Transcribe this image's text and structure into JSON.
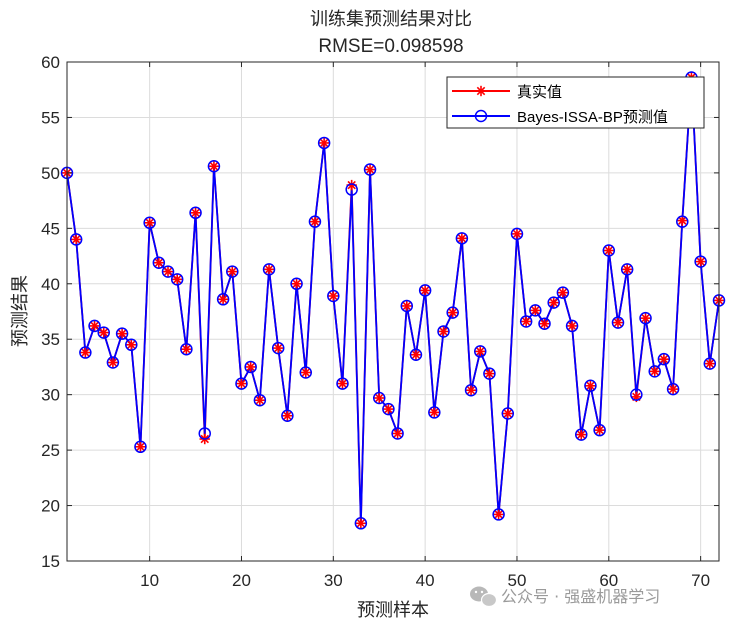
{
  "chart_data": {
    "type": "line",
    "title": "训练集预测结果对比",
    "subtitle": "RMSE=0.098598",
    "xlabel": "预测样本",
    "ylabel": "预测结果",
    "xlim": [
      1,
      72
    ],
    "ylim": [
      15,
      60
    ],
    "xticks": [
      10,
      20,
      30,
      40,
      50,
      60,
      70
    ],
    "yticks": [
      15,
      20,
      25,
      30,
      35,
      40,
      45,
      50,
      55,
      60
    ],
    "grid": true,
    "legend_position": "top-right",
    "series": [
      {
        "name": "真实值",
        "color": "#ff0000",
        "marker": "asterisk",
        "values": [
          50.0,
          44.0,
          33.8,
          36.2,
          35.6,
          32.9,
          35.5,
          34.5,
          25.3,
          45.5,
          41.9,
          41.1,
          40.4,
          34.1,
          46.4,
          26.0,
          50.6,
          38.6,
          41.1,
          31.0,
          32.5,
          29.5,
          41.3,
          34.2,
          28.1,
          40.0,
          32.0,
          45.6,
          52.7,
          38.9,
          31.0,
          48.9,
          18.4,
          50.3,
          29.7,
          28.7,
          26.5,
          38.0,
          33.6,
          39.4,
          28.4,
          35.7,
          37.4,
          44.1,
          30.4,
          33.9,
          31.9,
          19.2,
          28.3,
          44.5,
          36.6,
          37.6,
          36.4,
          38.3,
          39.2,
          36.2,
          26.4,
          30.8,
          26.8,
          43.0,
          36.5,
          41.3,
          29.8,
          36.9,
          32.1,
          33.2,
          30.5,
          45.7,
          58.6,
          42.0,
          32.8,
          38.5
        ]
      },
      {
        "name": "Bayes-ISSA-BP预测值",
        "color": "#0000ff",
        "marker": "circle",
        "values": [
          50.0,
          44.0,
          33.8,
          36.2,
          35.6,
          32.9,
          35.5,
          34.5,
          25.3,
          45.5,
          41.9,
          41.1,
          40.4,
          34.1,
          46.4,
          26.5,
          50.6,
          38.6,
          41.1,
          31.0,
          32.5,
          29.5,
          41.3,
          34.2,
          28.1,
          40.0,
          32.0,
          45.6,
          52.7,
          38.9,
          31.0,
          48.5,
          18.4,
          50.3,
          29.7,
          28.7,
          26.5,
          38.0,
          33.6,
          39.4,
          28.4,
          35.7,
          37.4,
          44.1,
          30.4,
          33.9,
          31.9,
          19.2,
          28.3,
          44.5,
          36.6,
          37.6,
          36.4,
          38.3,
          39.2,
          36.2,
          26.4,
          30.8,
          26.8,
          43.0,
          36.5,
          41.3,
          30.0,
          36.9,
          32.1,
          33.2,
          30.5,
          45.6,
          58.6,
          42.0,
          32.8,
          38.5
        ]
      }
    ]
  },
  "watermark": {
    "text": "公众号 · 强盛机器学习",
    "icon": "wechat-icon"
  }
}
